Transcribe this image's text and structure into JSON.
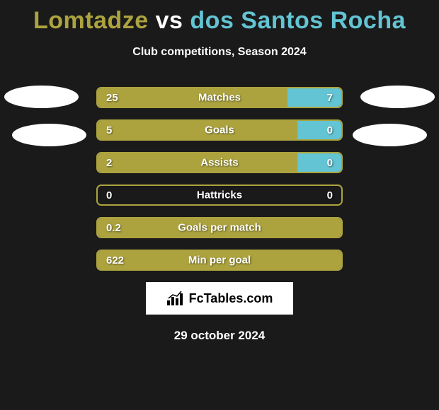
{
  "title": {
    "player1": "Lomtadze",
    "vs": "vs",
    "player2": "dos Santos Rocha",
    "color1": "#aca33f",
    "color_vs": "#ffffff",
    "color2": "#63c4d3"
  },
  "subtitle": "Club competitions, Season 2024",
  "bars": {
    "border_color": "#aca33f",
    "left_color": "#aca33f",
    "right_color": "#63c4d3",
    "rows": [
      {
        "label": "Matches",
        "left_value": "25",
        "right_value": "7",
        "left_pct": 78
      },
      {
        "label": "Goals",
        "left_value": "5",
        "right_value": "0",
        "left_pct": 82
      },
      {
        "label": "Assists",
        "left_value": "2",
        "right_value": "0",
        "left_pct": 82
      },
      {
        "label": "Hattricks",
        "left_value": "0",
        "right_value": "0",
        "left_pct": 0
      },
      {
        "label": "Goals per match",
        "left_value": "0.2",
        "right_value": "",
        "left_pct": 100
      },
      {
        "label": "Min per goal",
        "left_value": "622",
        "right_value": "",
        "left_pct": 100
      }
    ]
  },
  "brand": "FcTables.com",
  "date": "29 october 2024",
  "background_color": "#1a1a1a",
  "ellipse_color": "#ffffff"
}
